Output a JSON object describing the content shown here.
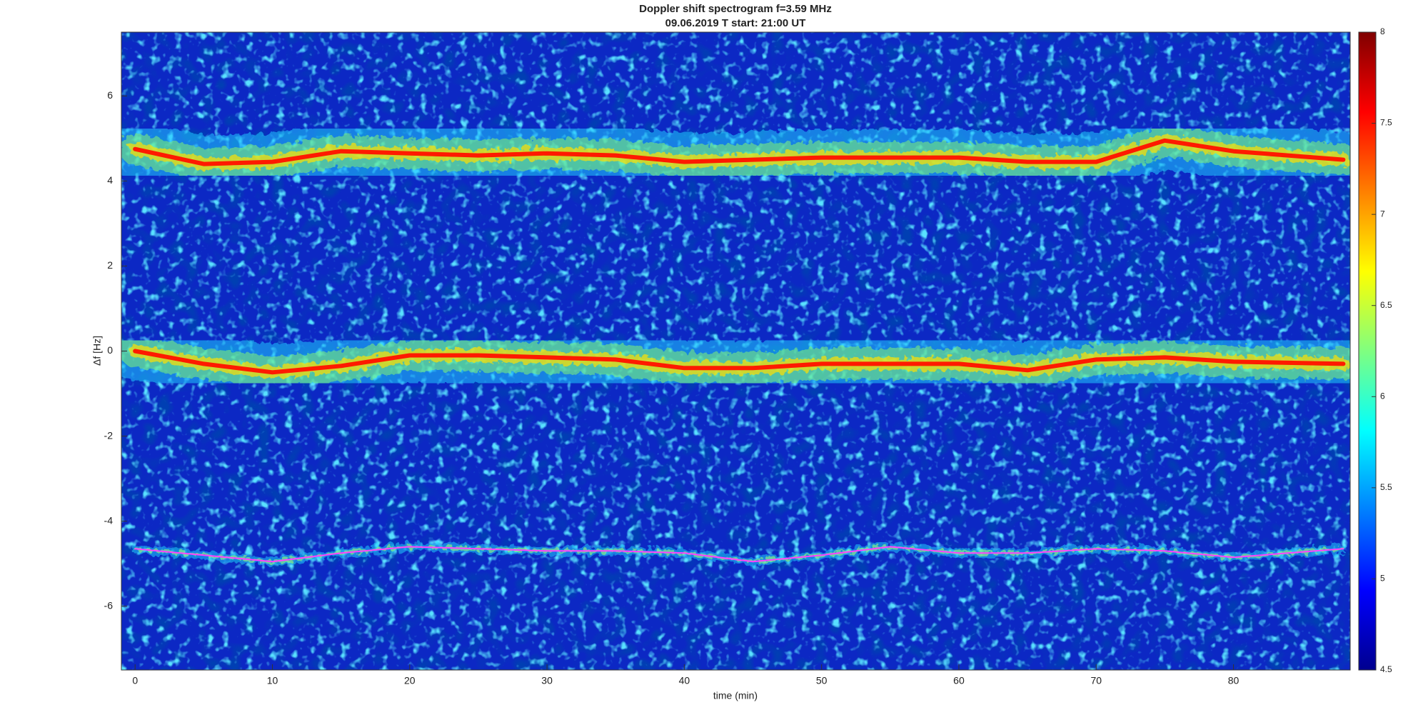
{
  "chart_data": {
    "type": "spectrogram",
    "title": "Doppler shift spectrogram f=3.59 MHz",
    "subtitle": "09.06.2019   T start: 21:00 UT",
    "xlabel": "time (min)",
    "ylabel": "Δf [Hz]",
    "xlim": [
      -1,
      88.5
    ],
    "ylim": [
      -7.5,
      7.5
    ],
    "xticks": [
      0,
      10,
      20,
      30,
      40,
      50,
      60,
      70,
      80
    ],
    "yticks": [
      -6,
      -4,
      -2,
      0,
      2,
      4,
      6
    ],
    "colorbar": {
      "lim": [
        4.5,
        8
      ],
      "ticks": [
        4.5,
        5,
        5.5,
        6,
        6.5,
        7,
        7.5,
        8
      ]
    },
    "x": [
      0,
      5,
      10,
      15,
      20,
      25,
      30,
      35,
      40,
      45,
      50,
      55,
      60,
      65,
      70,
      75,
      80,
      88
    ],
    "series": [
      {
        "color": "#ff1a00",
        "values": [
          4.75,
          4.4,
          4.45,
          4.7,
          4.65,
          4.6,
          4.65,
          4.6,
          4.45,
          4.5,
          4.55,
          4.55,
          4.55,
          4.45,
          4.45,
          4.95,
          4.7,
          4.5
        ]
      },
      {
        "color": "#ff1a00",
        "values": [
          0,
          -0.3,
          -0.5,
          -0.35,
          -0.1,
          -0.1,
          -0.15,
          -0.2,
          -0.4,
          -0.4,
          -0.3,
          -0.3,
          -0.3,
          -0.45,
          -0.2,
          -0.15,
          -0.25,
          -0.3
        ]
      },
      {
        "color": "#ff40ff",
        "values": [
          -4.65,
          -4.8,
          -4.95,
          -4.75,
          -4.6,
          -4.65,
          -4.7,
          -4.7,
          -4.75,
          -4.95,
          -4.8,
          -4.6,
          -4.75,
          -4.75,
          -4.65,
          -4.7,
          -4.85,
          -4.65
        ]
      }
    ]
  }
}
